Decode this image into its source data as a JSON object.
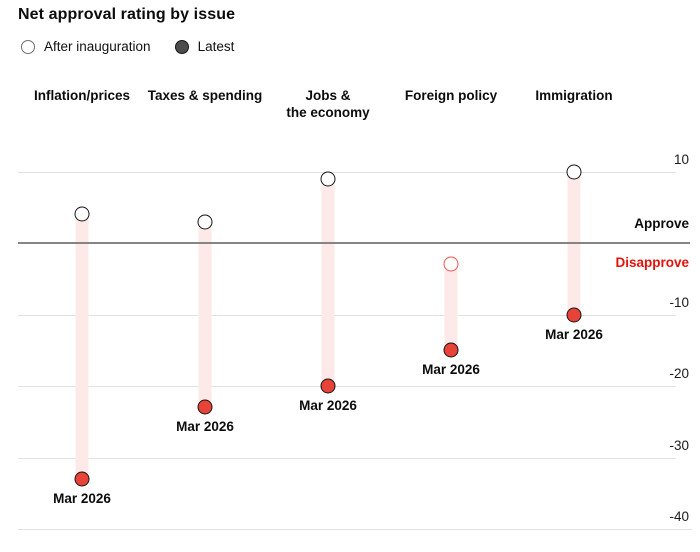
{
  "header": {
    "title": "Net approval rating by issue"
  },
  "legend": {
    "after_label": "After inauguration",
    "latest_label": "Latest"
  },
  "colors": {
    "latest_dot_fill": "#e84339",
    "dot_stroke": "#141414",
    "band": "#fce9e8",
    "gridline": "#e1e1e1",
    "zero_line": "#858585",
    "approve_text": "#0c0c0c",
    "disapprove_text": "#e3120b",
    "legend_latest_fill": "#4c4c4c",
    "after_negative_stroke": "#ee544c"
  },
  "chart_data": {
    "type": "scatter",
    "variant": "dumbbell-range",
    "title": "Net approval rating by issue",
    "categories": [
      "Inflation/prices",
      "Taxes & spending",
      "Jobs &\nthe economy",
      "Foreign policy",
      "Immigration"
    ],
    "series": [
      {
        "name": "After inauguration",
        "values": [
          4,
          3,
          9,
          -3,
          10
        ]
      },
      {
        "name": "Latest",
        "values": [
          -33,
          -23,
          -20,
          -15,
          -10
        ]
      }
    ],
    "after_stroke": [
      "#141414",
      "#141414",
      "#141414",
      "#ee544c",
      "#141414"
    ],
    "point_labels": [
      "Mar 2026",
      "Mar 2026",
      "Mar 2026",
      "Mar 2026",
      "Mar 2026"
    ],
    "yticks": [
      10,
      -10,
      -20,
      -30,
      -40
    ],
    "tick_labels": [
      "10",
      "-10",
      "-20",
      "-30",
      "-40"
    ],
    "ylim": [
      -44,
      13
    ],
    "zero_annotation_above": "Approve",
    "zero_annotation_below": "Disapprove",
    "grid": true,
    "legend_position": "top-left",
    "xlabel": "",
    "ylabel": ""
  }
}
